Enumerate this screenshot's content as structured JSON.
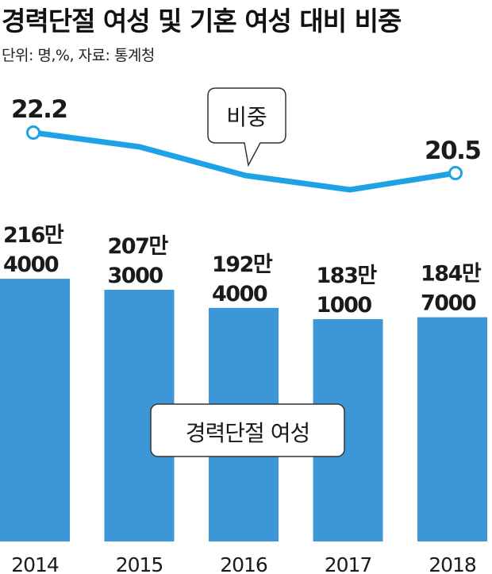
{
  "title": "경력단절 여성 및 기혼 여성 대비 비중",
  "subtitle": "단위: 명,%, 자료: 통계청",
  "colors": {
    "bar": "#3d97d6",
    "line": "#1ea2e6",
    "text": "#1a1a1a"
  },
  "chart_data": {
    "type": "bar",
    "categories": [
      "2014",
      "2015",
      "2016",
      "2017",
      "2018"
    ],
    "series": [
      {
        "name": "경력단절 여성",
        "values": [
          2164000,
          2073000,
          1924000,
          1831000,
          1847000
        ],
        "labels": [
          [
            "216만",
            "4000"
          ],
          [
            "207만",
            "3000"
          ],
          [
            "192만",
            "4000"
          ],
          [
            "183만",
            "1000"
          ],
          [
            "184만",
            "7000"
          ]
        ]
      },
      {
        "name": "비중",
        "type": "line",
        "values": [
          22.2,
          21.6,
          20.4,
          19.8,
          20.5
        ],
        "labels": [
          "22.2",
          "",
          "",
          "",
          "20.5"
        ]
      }
    ],
    "grid": false
  }
}
